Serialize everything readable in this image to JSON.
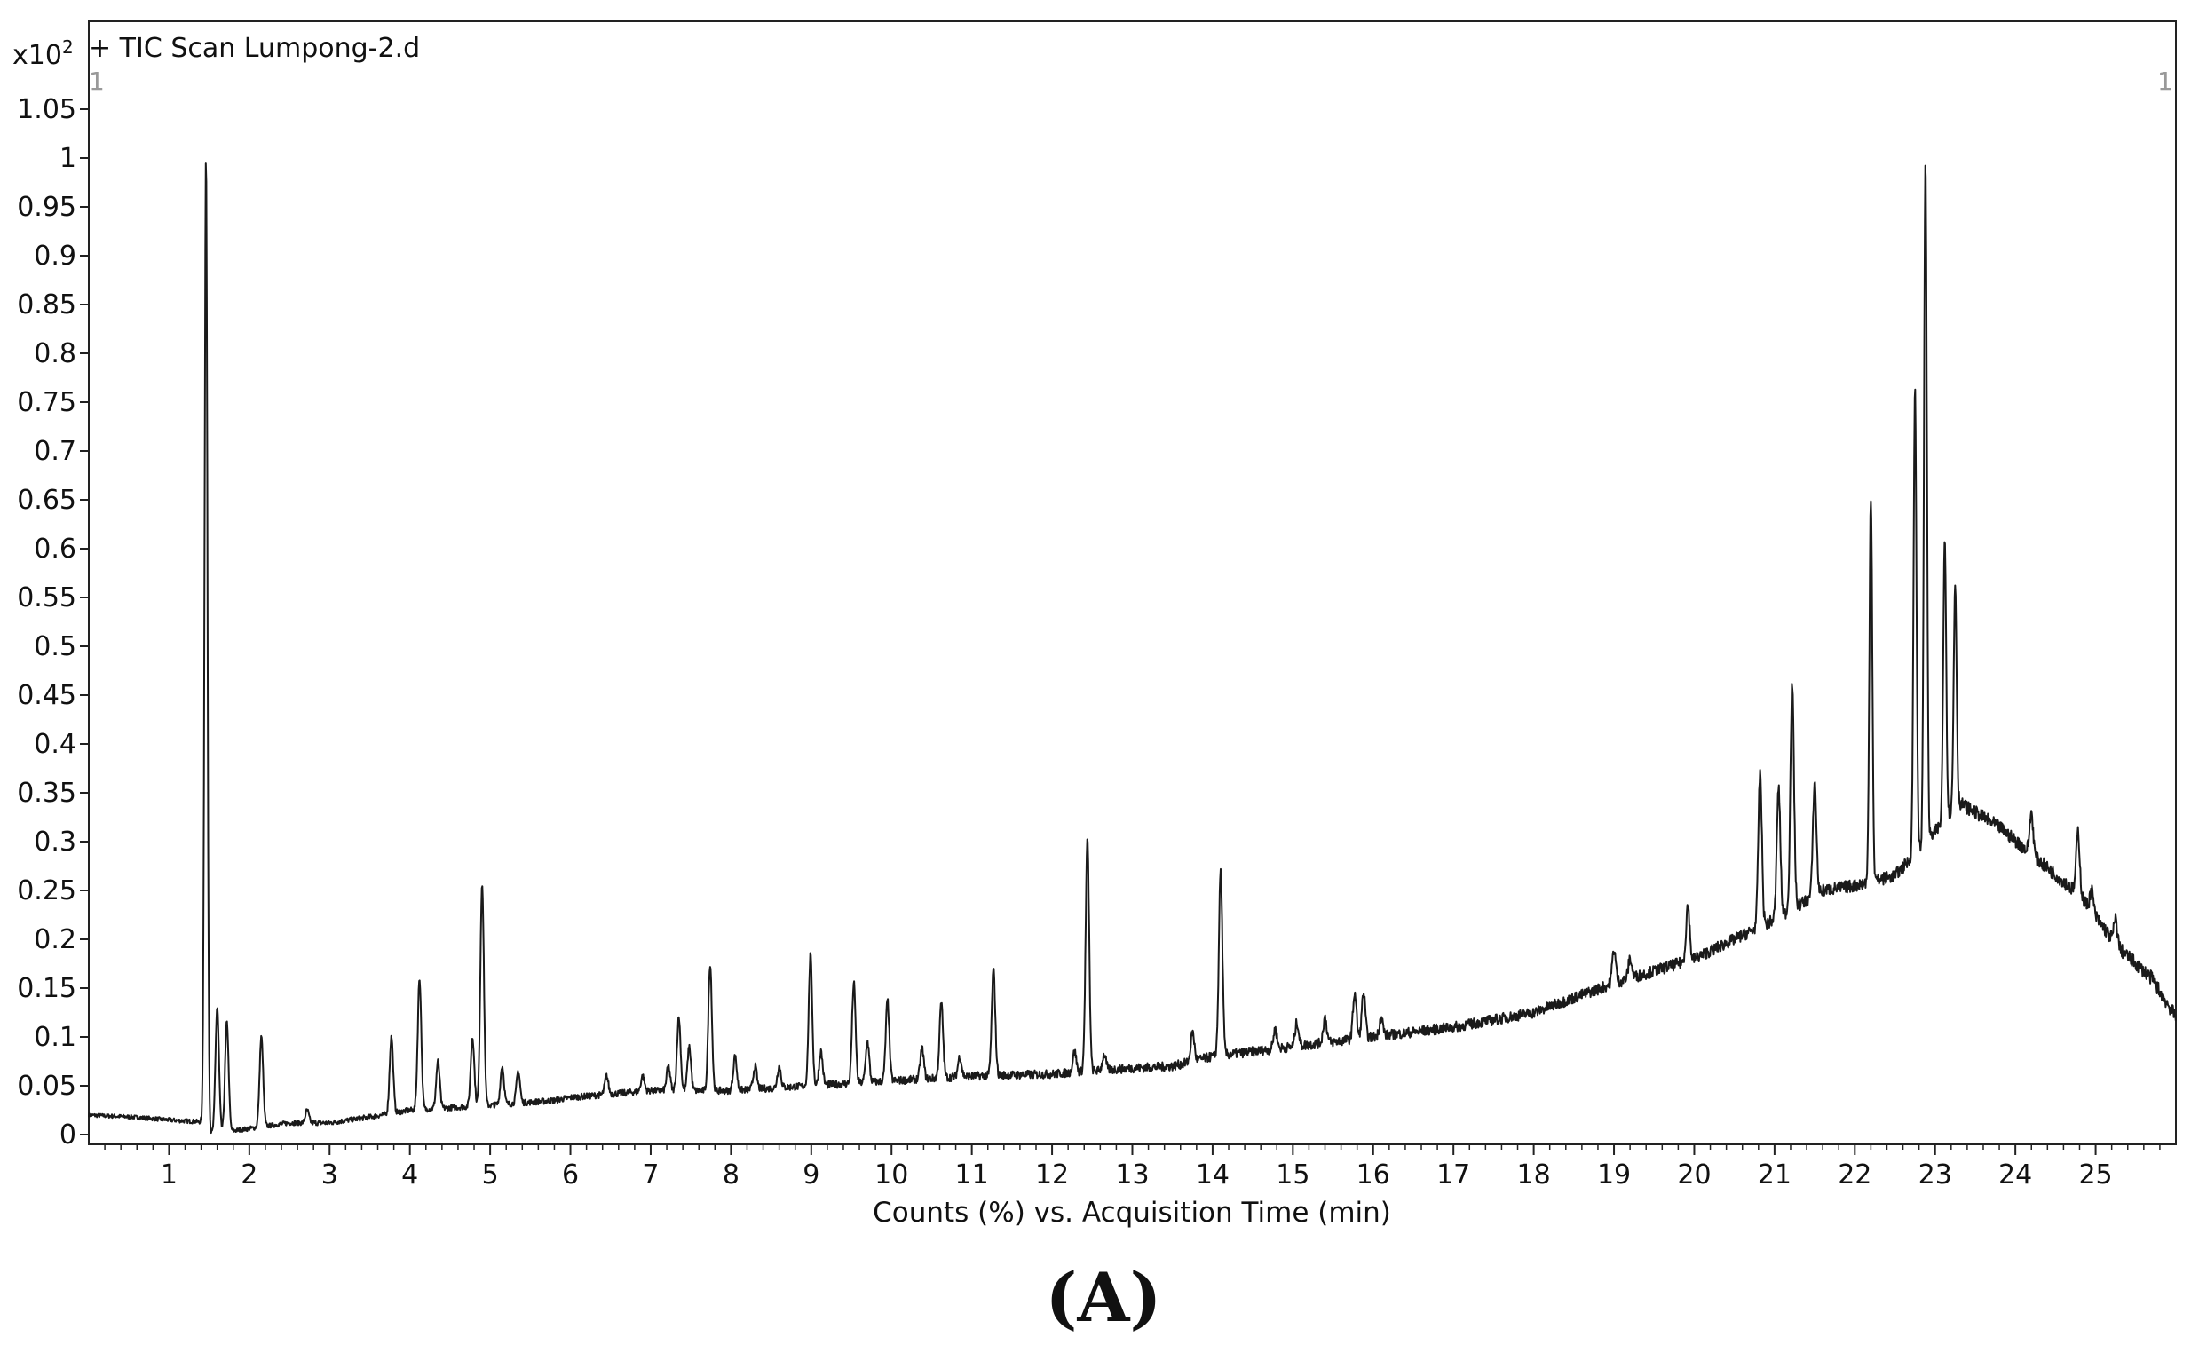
{
  "chart_data": {
    "type": "line",
    "title": "+ TIC Scan Lumpong-2.d",
    "xlabel": "Counts (%) vs. Acquisition Time (min)",
    "ylabel": "",
    "y_multiplier": "x10",
    "y_multiplier_exp": "2",
    "corner_marker_left": "1",
    "corner_marker_right": "1",
    "caption": "(A)",
    "xlim": [
      0.0,
      26.0
    ],
    "ylim": [
      -0.01,
      1.14
    ],
    "x_ticks": [
      1,
      2,
      3,
      4,
      5,
      6,
      7,
      8,
      9,
      10,
      11,
      12,
      13,
      14,
      15,
      16,
      17,
      18,
      19,
      20,
      21,
      22,
      23,
      24,
      25
    ],
    "x_tick_labels": [
      "1",
      "2",
      "3",
      "4",
      "5",
      "6",
      "7",
      "8",
      "9",
      "10",
      "11",
      "12",
      "13",
      "14",
      "15",
      "16",
      "17",
      "18",
      "19",
      "20",
      "21",
      "22",
      "23",
      "24",
      "25"
    ],
    "y_ticks": [
      0,
      0.05,
      0.1,
      0.15,
      0.2,
      0.25,
      0.3,
      0.35,
      0.4,
      0.45,
      0.5,
      0.55,
      0.6,
      0.65,
      0.7,
      0.75,
      0.8,
      0.85,
      0.9,
      0.95,
      1,
      1.05
    ],
    "y_tick_labels": [
      "0",
      "0.05",
      "0.1",
      "0.15",
      "0.2",
      "0.25",
      "0.3",
      "0.35",
      "0.4",
      "0.45",
      "0.5",
      "0.55",
      "0.6",
      "0.65",
      "0.7",
      "0.75",
      "0.8",
      "0.85",
      "0.9",
      "0.95",
      "1",
      "1.05"
    ],
    "grid": false,
    "line_color": "#1a1a1a",
    "series": [
      {
        "baseline": [
          [
            0.0,
            0.02
          ],
          [
            0.55,
            0.018
          ],
          [
            1.0,
            0.015
          ],
          [
            1.4,
            0.013
          ],
          [
            1.45,
            0.0
          ],
          [
            1.9,
            0.005
          ],
          [
            2.5,
            0.012
          ],
          [
            3.0,
            0.012
          ],
          [
            3.5,
            0.018
          ],
          [
            4.0,
            0.025
          ],
          [
            5.0,
            0.03
          ],
          [
            5.8,
            0.035
          ],
          [
            6.0,
            0.038
          ],
          [
            7.0,
            0.045
          ],
          [
            8.0,
            0.045
          ],
          [
            9.0,
            0.05
          ],
          [
            10.0,
            0.055
          ],
          [
            11.0,
            0.06
          ],
          [
            12.0,
            0.062
          ],
          [
            13.0,
            0.068
          ],
          [
            13.5,
            0.07
          ],
          [
            14.0,
            0.08
          ],
          [
            15.0,
            0.09
          ],
          [
            16.0,
            0.1
          ],
          [
            17.0,
            0.11
          ],
          [
            18.0,
            0.125
          ],
          [
            19.0,
            0.155
          ],
          [
            20.0,
            0.18
          ],
          [
            20.5,
            0.2
          ],
          [
            21.0,
            0.22
          ],
          [
            21.6,
            0.25
          ],
          [
            22.0,
            0.255
          ],
          [
            22.5,
            0.265
          ],
          [
            22.9,
            0.3
          ],
          [
            23.3,
            0.34
          ],
          [
            23.8,
            0.315
          ],
          [
            24.3,
            0.28
          ],
          [
            24.8,
            0.245
          ],
          [
            25.3,
            0.19
          ],
          [
            25.7,
            0.16
          ],
          [
            26.0,
            0.12
          ]
        ],
        "peaks": [
          [
            1.46,
            1.0
          ],
          [
            1.6,
            0.13
          ],
          [
            1.72,
            0.115
          ],
          [
            2.15,
            0.1
          ],
          [
            2.72,
            0.025
          ],
          [
            3.77,
            0.1
          ],
          [
            4.12,
            0.16
          ],
          [
            4.35,
            0.075
          ],
          [
            4.78,
            0.1
          ],
          [
            4.9,
            0.258
          ],
          [
            5.15,
            0.07
          ],
          [
            5.35,
            0.065
          ],
          [
            6.45,
            0.06
          ],
          [
            6.9,
            0.06
          ],
          [
            7.22,
            0.07
          ],
          [
            7.35,
            0.12
          ],
          [
            7.48,
            0.09
          ],
          [
            7.74,
            0.175
          ],
          [
            8.05,
            0.08
          ],
          [
            8.3,
            0.07
          ],
          [
            8.6,
            0.07
          ],
          [
            8.99,
            0.183
          ],
          [
            9.12,
            0.085
          ],
          [
            9.53,
            0.155
          ],
          [
            9.7,
            0.095
          ],
          [
            9.95,
            0.137
          ],
          [
            10.38,
            0.088
          ],
          [
            10.62,
            0.135
          ],
          [
            10.85,
            0.08
          ],
          [
            11.27,
            0.168
          ],
          [
            12.28,
            0.085
          ],
          [
            12.44,
            0.3
          ],
          [
            12.65,
            0.082
          ],
          [
            13.75,
            0.105
          ],
          [
            14.1,
            0.27
          ],
          [
            14.78,
            0.108
          ],
          [
            15.05,
            0.115
          ],
          [
            15.4,
            0.12
          ],
          [
            15.77,
            0.145
          ],
          [
            15.88,
            0.145
          ],
          [
            16.1,
            0.12
          ],
          [
            18.5,
            0.14
          ],
          [
            19.0,
            0.19
          ],
          [
            19.2,
            0.18
          ],
          [
            19.92,
            0.235
          ],
          [
            20.82,
            0.37
          ],
          [
            21.05,
            0.355
          ],
          [
            21.22,
            0.46
          ],
          [
            21.5,
            0.36
          ],
          [
            22.2,
            0.655
          ],
          [
            22.75,
            0.765
          ],
          [
            22.88,
            1.0
          ],
          [
            23.12,
            0.615
          ],
          [
            23.25,
            0.565
          ],
          [
            24.2,
            0.33
          ],
          [
            24.78,
            0.31
          ],
          [
            24.95,
            0.25
          ],
          [
            25.25,
            0.22
          ]
        ]
      }
    ]
  }
}
